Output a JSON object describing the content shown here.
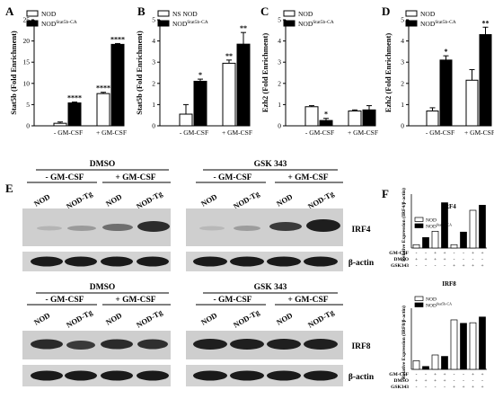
{
  "panels": {
    "A": "A",
    "B": "B",
    "C": "C",
    "D": "D",
    "E": "E",
    "F": "F"
  },
  "chart_data": [
    {
      "panel": "A",
      "type": "bar",
      "ylabel": "Stat5b (Fold Enrichment)",
      "ylim": [
        0,
        25
      ],
      "yticks": [
        "0",
        "5",
        "10",
        "15",
        "20",
        "25"
      ],
      "categories": [
        "- GM-CSF",
        "+ GM-CSF"
      ],
      "legend": [
        "NOD",
        "NOD",
        "Stat5b-CA"
      ],
      "series": [
        {
          "name": "NOD",
          "values": [
            0.6,
            7.6
          ],
          "errors": [
            0.3,
            0.3
          ],
          "fill": "#ffffff"
        },
        {
          "name": "NODStat5b-CA",
          "values": [
            5.4,
            19.2
          ],
          "errors": [
            0.2,
            0.2
          ],
          "fill": "#000000"
        }
      ],
      "significance": [
        "****",
        "****",
        "****"
      ]
    },
    {
      "panel": "B",
      "type": "bar",
      "ylabel": "Stat5b (Fold Enrichment)",
      "ylim": [
        0,
        5
      ],
      "yticks": [
        "0",
        "1",
        "2",
        "3",
        "4",
        "5"
      ],
      "categories": [
        "- GM-CSF",
        "+ GM-CSF"
      ],
      "legend": [
        "NS NOD",
        "NOD",
        "Stat5b-CA"
      ],
      "series": [
        {
          "name": "NS NOD",
          "values": [
            0.55,
            2.95
          ],
          "errors": [
            0.45,
            0.15
          ],
          "fill": "#ffffff"
        },
        {
          "name": "NODStat5b-CA",
          "values": [
            2.1,
            3.85
          ],
          "errors": [
            0.1,
            0.55
          ],
          "fill": "#000000"
        }
      ],
      "significance": [
        "*",
        "**",
        "**"
      ]
    },
    {
      "panel": "C",
      "type": "bar",
      "ylabel": "Ezh2 (Fold Enrichment)",
      "ylim": [
        0,
        5
      ],
      "yticks": [
        "0",
        "1",
        "2",
        "3",
        "4",
        "5"
      ],
      "categories": [
        "- GM-CSF",
        "+ GM-CSF"
      ],
      "legend": [
        "NOD",
        "NOD",
        "Stat5b-CA"
      ],
      "series": [
        {
          "name": "NOD",
          "values": [
            0.9,
            0.7
          ],
          "errors": [
            0.05,
            0.05
          ],
          "fill": "#ffffff"
        },
        {
          "name": "NODStat5b-CA",
          "values": [
            0.25,
            0.75
          ],
          "errors": [
            0.1,
            0.2
          ],
          "fill": "#000000"
        }
      ],
      "significance": [
        "*"
      ]
    },
    {
      "panel": "D",
      "type": "bar",
      "ylabel": "Ezh2 (Fold Enrichment)",
      "ylim": [
        0,
        5
      ],
      "yticks": [
        "0",
        "1",
        "2",
        "3",
        "4",
        "5"
      ],
      "categories": [
        "- GM-CSF",
        "+ GM-CSF"
      ],
      "legend": [
        "NOD",
        "NOD",
        "Stat5b-CA"
      ],
      "series": [
        {
          "name": "NOD",
          "values": [
            0.7,
            2.15
          ],
          "errors": [
            0.15,
            0.5
          ],
          "fill": "#ffffff"
        },
        {
          "name": "NODStat5b-CA",
          "values": [
            3.1,
            4.3
          ],
          "errors": [
            0.2,
            0.35
          ],
          "fill": "#000000"
        }
      ],
      "significance": [
        "*",
        "**"
      ]
    },
    {
      "panel": "F-top",
      "type": "bar",
      "title": "IRF4",
      "ylabel": "Relative Expression (IRF4/β-actin)",
      "ylim": [
        0,
        1.2
      ],
      "legend": [
        "NOD",
        "NOD",
        "Stat5b-CA"
      ],
      "values": [
        0.08,
        0.25,
        0.4,
        1.08,
        0.08,
        0.38,
        0.9,
        1.02
      ],
      "fills": [
        "w",
        "b",
        "w",
        "b",
        "w",
        "b",
        "w",
        "b"
      ],
      "rows": [
        {
          "label": "GM-CSF",
          "signs": [
            "-",
            "-",
            "+",
            "+",
            "-",
            "-",
            "+",
            "+"
          ]
        },
        {
          "label": "DMSO",
          "signs": [
            "+",
            "+",
            "+",
            "+",
            "-",
            "-",
            "-",
            "-"
          ]
        },
        {
          "label": "GSK343",
          "signs": [
            "-",
            "-",
            "-",
            "-",
            "+",
            "+",
            "+",
            "+"
          ]
        }
      ]
    },
    {
      "panel": "F-bottom",
      "type": "bar",
      "title": "IRF8",
      "ylabel": "Relative Expression (IRF8/β-actin)",
      "ylim": [
        0,
        2.0
      ],
      "legend": [
        "NOD",
        "NOD",
        "Stat5b-CA"
      ],
      "values": [
        0.3,
        0.1,
        0.5,
        0.45,
        1.72,
        1.6,
        1.62,
        1.82
      ],
      "fills": [
        "w",
        "b",
        "w",
        "b",
        "w",
        "b",
        "w",
        "b"
      ],
      "rows": [
        {
          "label": "GM-CSF",
          "signs": [
            "-",
            "-",
            "+",
            "+",
            "-",
            "-",
            "+",
            "+"
          ]
        },
        {
          "label": "DMSO",
          "signs": [
            "+",
            "+",
            "+",
            "+",
            "-",
            "-",
            "-",
            "-"
          ]
        },
        {
          "label": "GSK343",
          "signs": [
            "-",
            "-",
            "-",
            "-",
            "+",
            "+",
            "+",
            "+"
          ]
        }
      ]
    }
  ],
  "blots": {
    "top_left": {
      "header": "DMSO",
      "groups": [
        "- GM-CSF",
        "+ GM-CSF"
      ],
      "lanes": [
        "NOD",
        "NOD-Tg",
        "NOD",
        "NOD-Tg"
      ]
    },
    "top_right": {
      "header": "GSK 343",
      "groups": [
        "- GM-CSF",
        "+ GM-CSF"
      ],
      "lanes": [
        "NOD",
        "NOD-Tg",
        "NOD",
        "NOD-Tg"
      ]
    },
    "bottom_left": {
      "header": "DMSO",
      "groups": [
        "- GM-CSF",
        "+ GM-CSF"
      ],
      "lanes": [
        "NOD",
        "NOD-Tg",
        "NOD",
        "NOD-Tg"
      ]
    },
    "bottom_right": {
      "header": "GSK 343",
      "groups": [
        "- GM-CSF",
        "+ GM-CSF"
      ],
      "lanes": [
        "NOD",
        "NOD-Tg",
        "NOD",
        "NOD-Tg"
      ]
    },
    "labels": [
      "IRF4",
      "β-actin",
      "IRF8",
      "β-actin"
    ]
  }
}
